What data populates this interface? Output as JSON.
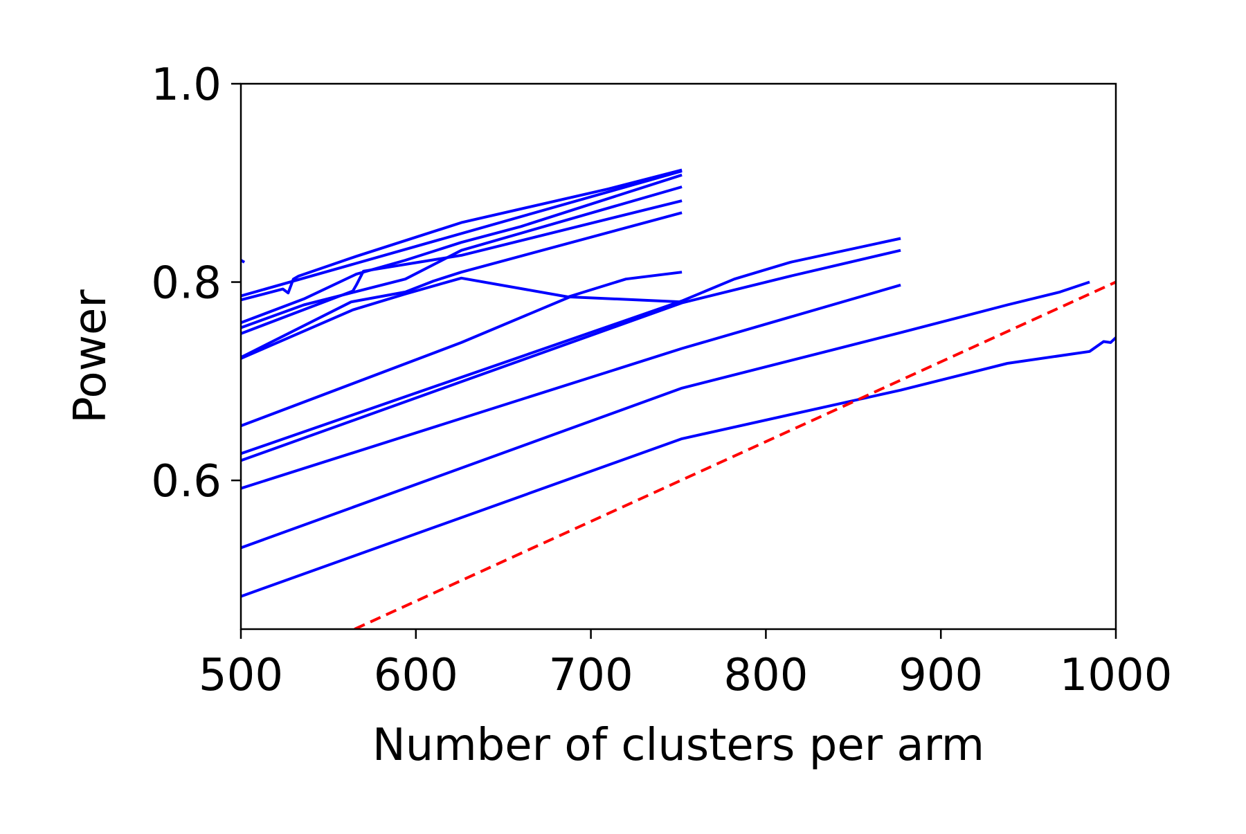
{
  "chart_data": {
    "type": "line",
    "title": "",
    "xlabel": "Number of clusters per arm",
    "ylabel": "Power",
    "xlim": [
      500,
      1000
    ],
    "ylim": [
      0.45,
      1.0
    ],
    "xticks": [
      500,
      600,
      700,
      800,
      900,
      1000
    ],
    "yticks": [
      0.6,
      0.8,
      1.0
    ],
    "xtick_labels": [
      "500",
      "600",
      "700",
      "800",
      "900",
      "1000"
    ],
    "ytick_labels": [
      "0.6",
      "0.8",
      "1.0"
    ],
    "grid": false,
    "legend": "none",
    "series": [
      {
        "color": "#0000ff",
        "style": "solid",
        "x": [
          500,
          752
        ],
        "y": [
          0.786,
          0.912
        ]
      },
      {
        "color": "#0000ff",
        "style": "solid",
        "x": [
          500,
          524,
          527,
          530,
          533,
          566,
          626,
          710,
          752
        ],
        "y": [
          0.782,
          0.793,
          0.789,
          0.803,
          0.806,
          0.826,
          0.86,
          0.894,
          0.913
        ]
      },
      {
        "color": "#0000ff",
        "style": "solid",
        "x": [
          500,
          536,
          566,
          594,
          626,
          660,
          752
        ],
        "y": [
          0.759,
          0.783,
          0.808,
          0.822,
          0.84,
          0.856,
          0.908
        ]
      },
      {
        "color": "#0000ff",
        "style": "solid",
        "x": [
          500,
          536,
          594,
          626,
          752
        ],
        "y": [
          0.754,
          0.777,
          0.803,
          0.832,
          0.896
        ]
      },
      {
        "color": "#0000ff",
        "style": "solid",
        "x": [
          500,
          564,
          566,
          570,
          626,
          752
        ],
        "y": [
          0.748,
          0.791,
          0.797,
          0.811,
          0.827,
          0.882
        ]
      },
      {
        "color": "#0000ff",
        "style": "solid",
        "x": [
          500,
          563,
          594,
          610,
          626,
          752
        ],
        "y": [
          0.724,
          0.78,
          0.79,
          0.801,
          0.81,
          0.87
        ]
      },
      {
        "color": "#0000ff",
        "style": "solid",
        "x": [
          500,
          564,
          594,
          626,
          687,
          720,
          752
        ],
        "y": [
          0.723,
          0.772,
          0.788,
          0.804,
          0.785,
          0.803,
          0.81
        ]
      },
      {
        "color": "#0000ff",
        "style": "solid",
        "x": [
          500,
          626,
          688,
          752
        ],
        "y": [
          0.655,
          0.739,
          0.785,
          0.78
        ]
      },
      {
        "color": "#0000ff",
        "style": "solid",
        "x": [
          500,
          752,
          782,
          814,
          877
        ],
        "y": [
          0.627,
          0.781,
          0.803,
          0.82,
          0.844
        ]
      },
      {
        "color": "#0000ff",
        "style": "solid",
        "x": [
          500,
          752,
          814,
          877
        ],
        "y": [
          0.62,
          0.779,
          0.806,
          0.832
        ]
      },
      {
        "color": "#0000ff",
        "style": "solid",
        "x": [
          500,
          752,
          877
        ],
        "y": [
          0.592,
          0.733,
          0.797
        ]
      },
      {
        "color": "#0000ff",
        "style": "solid",
        "x": [
          500,
          752,
          877,
          938,
          968,
          985
        ],
        "y": [
          0.532,
          0.693,
          0.749,
          0.777,
          0.79,
          0.8
        ]
      },
      {
        "color": "#0000ff",
        "style": "solid",
        "x": [
          500,
          752,
          877,
          938,
          985,
          993,
          997,
          1000
        ],
        "y": [
          0.483,
          0.642,
          0.691,
          0.718,
          0.73,
          0.74,
          0.739,
          0.744
        ]
      },
      {
        "color": "#0000ff",
        "style": "solid",
        "x": [
          500,
          502
        ],
        "y": [
          0.822,
          0.82
        ]
      },
      {
        "color": "#ff0000",
        "style": "dashed",
        "x": [
          565,
          1000
        ],
        "y": [
          0.45,
          0.8
        ]
      }
    ]
  }
}
